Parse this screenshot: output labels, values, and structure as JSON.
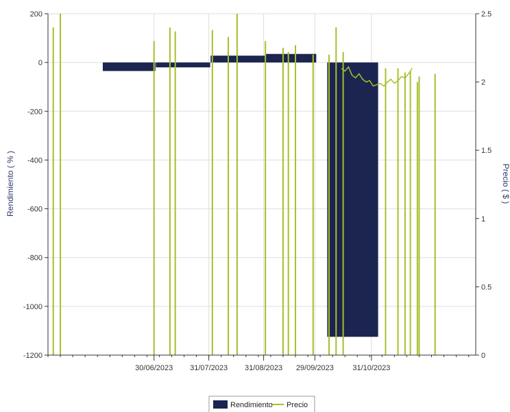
{
  "chart_data": {
    "type": "bar",
    "ylabel_left": "Rendimiento ( % )",
    "ylabel_right": "Precio ( $ )",
    "x_tick_labels": [
      "30/06/2023",
      "31/07/2023",
      "31/08/2023",
      "29/09/2023",
      "31/10/2023"
    ],
    "x_range": [
      "2023-05-01",
      "2023-12-29"
    ],
    "y_left_range": [
      -1200,
      200
    ],
    "y_left_ticks": [
      200,
      0,
      -200,
      -400,
      -600,
      -800,
      -1000,
      -1200
    ],
    "y_right_range": [
      0,
      2.5
    ],
    "y_right_ticks": [
      2.5,
      2,
      1.5,
      1,
      0.5,
      0
    ],
    "grid": true,
    "legend_position": "bottom",
    "colors": {
      "rendimiento": "#1b2550",
      "precio": "#a8bf28",
      "axis": "#333333"
    },
    "series": [
      {
        "name": "Rendimiento",
        "type": "bar",
        "axis": "left",
        "bars": [
          {
            "start": "2023-06-01",
            "end": "2023-06-30",
            "value": -35
          },
          {
            "start": "2023-07-01",
            "end": "2023-07-31",
            "value": -20
          },
          {
            "start": "2023-08-01",
            "end": "2023-08-31",
            "value": 28
          },
          {
            "start": "2023-09-01",
            "end": "2023-09-29",
            "value": 35
          },
          {
            "start": "2023-10-06",
            "end": "2023-11-03",
            "value": -1125
          }
        ]
      },
      {
        "name": "Precio",
        "type": "line",
        "axis": "right",
        "spikes": [
          {
            "x": "2023-05-04",
            "y": 2.4
          },
          {
            "x": "2023-05-08",
            "y": 2.5
          },
          {
            "x": "2023-06-30",
            "y": 2.3
          },
          {
            "x": "2023-07-09",
            "y": 2.4
          },
          {
            "x": "2023-07-12",
            "y": 2.37
          },
          {
            "x": "2023-08-02",
            "y": 2.38
          },
          {
            "x": "2023-08-11",
            "y": 2.33
          },
          {
            "x": "2023-08-16",
            "y": 2.5
          },
          {
            "x": "2023-09-01",
            "y": 2.3
          },
          {
            "x": "2023-09-11",
            "y": 2.25
          },
          {
            "x": "2023-09-14",
            "y": 2.22
          },
          {
            "x": "2023-09-18",
            "y": 2.27
          },
          {
            "x": "2023-09-28",
            "y": 2.2
          },
          {
            "x": "2023-10-07",
            "y": 2.2
          },
          {
            "x": "2023-10-11",
            "y": 2.4
          },
          {
            "x": "2023-10-15",
            "y": 2.22
          },
          {
            "x": "2023-11-08",
            "y": 2.1
          },
          {
            "x": "2023-11-15",
            "y": 2.1
          },
          {
            "x": "2023-11-19",
            "y": 2.07
          },
          {
            "x": "2023-11-22",
            "y": 2.08
          },
          {
            "x": "2023-11-26",
            "y": 2.0
          },
          {
            "x": "2023-11-27",
            "y": 2.04
          },
          {
            "x": "2023-12-06",
            "y": 2.06
          }
        ],
        "points": [
          {
            "x": "2023-10-14",
            "y": 2.1
          },
          {
            "x": "2023-10-16",
            "y": 2.08
          },
          {
            "x": "2023-10-18",
            "y": 2.11
          },
          {
            "x": "2023-10-20",
            "y": 2.05
          },
          {
            "x": "2023-10-22",
            "y": 2.03
          },
          {
            "x": "2023-10-24",
            "y": 2.06
          },
          {
            "x": "2023-10-26",
            "y": 2.02
          },
          {
            "x": "2023-10-28",
            "y": 2.0
          },
          {
            "x": "2023-10-30",
            "y": 2.01
          },
          {
            "x": "2023-11-01",
            "y": 1.97
          },
          {
            "x": "2023-11-03",
            "y": 1.98
          },
          {
            "x": "2023-11-05",
            "y": 1.99
          },
          {
            "x": "2023-11-07",
            "y": 1.97
          },
          {
            "x": "2023-11-09",
            "y": 2.0
          },
          {
            "x": "2023-11-11",
            "y": 2.02
          },
          {
            "x": "2023-11-13",
            "y": 1.99
          },
          {
            "x": "2023-11-15",
            "y": 2.01
          },
          {
            "x": "2023-11-17",
            "y": 2.04
          },
          {
            "x": "2023-11-19",
            "y": 2.03
          },
          {
            "x": "2023-11-21",
            "y": 2.06
          },
          {
            "x": "2023-11-23",
            "y": 2.1
          }
        ]
      }
    ]
  },
  "legend": {
    "items": [
      {
        "label": "Rendimiento",
        "kind": "bar",
        "color": "#1b2550"
      },
      {
        "label": "Precio",
        "kind": "line",
        "color": "#a8bf28"
      }
    ]
  }
}
